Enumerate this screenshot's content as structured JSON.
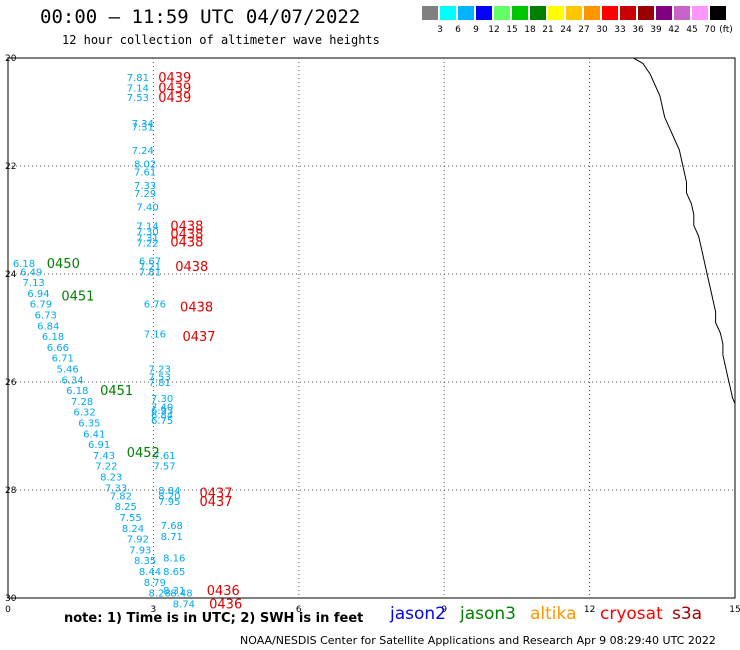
{
  "header": {
    "title": "00:00 – 11:59 UTC 04/07/2022",
    "subtitle": "12 hour collection of altimeter wave heights"
  },
  "colorbar": {
    "colors": [
      "#808080",
      "#00ffff",
      "#00b4ff",
      "#0000ff",
      "#64ff64",
      "#00c800",
      "#008000",
      "#ffff00",
      "#ffc800",
      "#ff9600",
      "#ff0000",
      "#c80000",
      "#960000",
      "#800080",
      "#c864c8",
      "#ff96ff",
      "#000000"
    ],
    "labels": [
      "3",
      "6",
      "9",
      "12",
      "15",
      "18",
      "21",
      "24",
      "27",
      "30",
      "33",
      "36",
      "39",
      "42",
      "45",
      "70"
    ],
    "unit": "(ft)"
  },
  "axes": {
    "y_ticks": [
      "20",
      "22",
      "24",
      "26",
      "28",
      "30"
    ],
    "x_ticks": [
      "0",
      "3",
      "6",
      "9",
      "12",
      "15"
    ]
  },
  "footnote": "note: 1) Time is in UTC; 2) SWH is in feet",
  "legend": [
    {
      "name": "jason2",
      "color": "#0000ff"
    },
    {
      "name": "jason3",
      "color": "#008000"
    },
    {
      "name": "altika",
      "color": "#ff9600"
    },
    {
      "name": "cryosat",
      "color": "#ff0000"
    },
    {
      "name": "s3a",
      "color": "#a00000"
    }
  ],
  "credit": "NOAA/NESDIS Center for Satellite Applications and Research    Apr  9 08:29:40 UTC 2022",
  "observations": {
    "cryosat_color": "#00aaee",
    "jason3_color": "#008000",
    "s3a_color": "#e00000",
    "track_a": [
      {
        "lat": 20.35,
        "lon": 2.45,
        "swh": "7.81"
      },
      {
        "lat": 20.55,
        "lon": 2.45,
        "swh": "7.14"
      },
      {
        "lat": 20.72,
        "lon": 2.45,
        "swh": "7.53"
      },
      {
        "lat": 21.2,
        "lon": 2.55,
        "swh": "7.34"
      },
      {
        "lat": 21.27,
        "lon": 2.55,
        "swh": "7.31"
      },
      {
        "lat": 21.7,
        "lon": 2.55,
        "swh": "7.24"
      },
      {
        "lat": 21.95,
        "lon": 2.6,
        "swh": "8.02"
      },
      {
        "lat": 22.1,
        "lon": 2.6,
        "swh": "7.61"
      },
      {
        "lat": 22.35,
        "lon": 2.6,
        "swh": "7.33"
      },
      {
        "lat": 22.5,
        "lon": 2.6,
        "swh": "7.29"
      },
      {
        "lat": 22.75,
        "lon": 2.65,
        "swh": "7.40"
      },
      {
        "lat": 23.1,
        "lon": 2.65,
        "swh": "7.14"
      },
      {
        "lat": 23.2,
        "lon": 2.65,
        "swh": "7.30"
      },
      {
        "lat": 23.32,
        "lon": 2.65,
        "swh": "7.31"
      },
      {
        "lat": 23.42,
        "lon": 2.65,
        "swh": "7.22"
      },
      {
        "lat": 23.75,
        "lon": 2.7,
        "swh": "6.67"
      },
      {
        "lat": 23.85,
        "lon": 2.7,
        "swh": "7.21"
      },
      {
        "lat": 23.95,
        "lon": 2.7,
        "swh": "7.81"
      },
      {
        "lat": 24.55,
        "lon": 2.8,
        "swh": "6.76"
      },
      {
        "lat": 25.1,
        "lon": 2.8,
        "swh": "7.16"
      },
      {
        "lat": 25.75,
        "lon": 2.9,
        "swh": "7.23"
      },
      {
        "lat": 25.9,
        "lon": 2.9,
        "swh": "7.53"
      },
      {
        "lat": 26.0,
        "lon": 2.9,
        "swh": "7.81"
      },
      {
        "lat": 26.3,
        "lon": 2.95,
        "swh": "7.30"
      },
      {
        "lat": 26.45,
        "lon": 2.95,
        "swh": "7.40"
      },
      {
        "lat": 26.52,
        "lon": 2.95,
        "swh": "6.93"
      },
      {
        "lat": 26.6,
        "lon": 2.95,
        "swh": "6.84"
      },
      {
        "lat": 26.7,
        "lon": 2.95,
        "swh": "6.75"
      },
      {
        "lat": 27.35,
        "lon": 3.0,
        "swh": "7.61"
      },
      {
        "lat": 27.55,
        "lon": 3.0,
        "swh": "7.57"
      },
      {
        "lat": 28.0,
        "lon": 3.1,
        "swh": "8.84"
      },
      {
        "lat": 28.1,
        "lon": 3.1,
        "swh": "8.20"
      },
      {
        "lat": 28.2,
        "lon": 3.1,
        "swh": "7.95"
      },
      {
        "lat": 28.65,
        "lon": 3.15,
        "swh": "7.68"
      },
      {
        "lat": 28.85,
        "lon": 3.15,
        "swh": "8.71"
      },
      {
        "lat": 29.25,
        "lon": 3.2,
        "swh": "8.16"
      },
      {
        "lat": 29.5,
        "lon": 3.2,
        "swh": "8.65"
      },
      {
        "lat": 29.85,
        "lon": 3.2,
        "swh": "8.31"
      },
      {
        "lat": 29.9,
        "lon": 3.35,
        "swh": "8.48"
      },
      {
        "lat": 30.1,
        "lon": 3.4,
        "swh": "8.74"
      }
    ],
    "track_b": [
      {
        "lat": 23.8,
        "lon": 0.1,
        "swh": "6.18"
      },
      {
        "lat": 23.95,
        "lon": 0.25,
        "swh": "6.49"
      },
      {
        "lat": 24.15,
        "lon": 0.3,
        "swh": "7.13"
      },
      {
        "lat": 24.35,
        "lon": 0.4,
        "swh": "6.94"
      },
      {
        "lat": 24.55,
        "lon": 0.45,
        "swh": "6.79"
      },
      {
        "lat": 24.75,
        "lon": 0.55,
        "swh": "6.73"
      },
      {
        "lat": 24.95,
        "lon": 0.6,
        "swh": "6.84"
      },
      {
        "lat": 25.15,
        "lon": 0.7,
        "swh": "6.18"
      },
      {
        "lat": 25.35,
        "lon": 0.8,
        "swh": "6.66"
      },
      {
        "lat": 25.55,
        "lon": 0.9,
        "swh": "6.71"
      },
      {
        "lat": 25.75,
        "lon": 1.0,
        "swh": "5.46"
      },
      {
        "lat": 25.95,
        "lon": 1.1,
        "swh": "6.34"
      },
      {
        "lat": 26.15,
        "lon": 1.2,
        "swh": "6.18"
      },
      {
        "lat": 26.35,
        "lon": 1.3,
        "swh": "7.28"
      },
      {
        "lat": 26.55,
        "lon": 1.35,
        "swh": "6.32"
      },
      {
        "lat": 26.75,
        "lon": 1.45,
        "swh": "6.35"
      },
      {
        "lat": 26.95,
        "lon": 1.55,
        "swh": "6.41"
      },
      {
        "lat": 27.15,
        "lon": 1.65,
        "swh": "6.91"
      },
      {
        "lat": 27.35,
        "lon": 1.75,
        "swh": "7.43"
      },
      {
        "lat": 27.55,
        "lon": 1.8,
        "swh": "7.22"
      },
      {
        "lat": 27.75,
        "lon": 1.9,
        "swh": "8.23"
      },
      {
        "lat": 27.95,
        "lon": 2.0,
        "swh": "7.33"
      },
      {
        "lat": 28.1,
        "lon": 2.1,
        "swh": "7.82"
      },
      {
        "lat": 28.3,
        "lon": 2.2,
        "swh": "8.25"
      },
      {
        "lat": 28.5,
        "lon": 2.3,
        "swh": "7.55"
      },
      {
        "lat": 28.7,
        "lon": 2.35,
        "swh": "8.24"
      },
      {
        "lat": 28.9,
        "lon": 2.45,
        "swh": "7.92"
      },
      {
        "lat": 29.1,
        "lon": 2.5,
        "swh": "7.93"
      },
      {
        "lat": 29.3,
        "lon": 2.6,
        "swh": "8.35"
      },
      {
        "lat": 29.5,
        "lon": 2.7,
        "swh": "8.44"
      },
      {
        "lat": 29.7,
        "lon": 2.8,
        "swh": "8.79"
      },
      {
        "lat": 29.9,
        "lon": 2.9,
        "swh": "8.28"
      }
    ],
    "times_s3a": [
      {
        "lat": 20.35,
        "lon": 3.1,
        "t": "0439"
      },
      {
        "lat": 20.55,
        "lon": 3.1,
        "t": "0439"
      },
      {
        "lat": 20.72,
        "lon": 3.1,
        "t": "0439"
      },
      {
        "lat": 23.1,
        "lon": 3.35,
        "t": "0438"
      },
      {
        "lat": 23.25,
        "lon": 3.35,
        "t": "0438"
      },
      {
        "lat": 23.4,
        "lon": 3.35,
        "t": "0438"
      },
      {
        "lat": 23.85,
        "lon": 3.45,
        "t": "0438"
      },
      {
        "lat": 24.6,
        "lon": 3.55,
        "t": "0438"
      },
      {
        "lat": 25.15,
        "lon": 3.6,
        "t": "0437"
      },
      {
        "lat": 28.05,
        "lon": 3.95,
        "t": "0437"
      },
      {
        "lat": 28.2,
        "lon": 3.95,
        "t": "0437"
      },
      {
        "lat": 29.85,
        "lon": 4.1,
        "t": "0436"
      },
      {
        "lat": 30.1,
        "lon": 4.15,
        "t": "0436"
      }
    ],
    "times_jason3": [
      {
        "lat": 23.8,
        "lon": 0.8,
        "t": "0450"
      },
      {
        "lat": 24.4,
        "lon": 1.1,
        "t": "0451"
      },
      {
        "lat": 26.15,
        "lon": 1.9,
        "t": "0451"
      },
      {
        "lat": 27.3,
        "lon": 2.45,
        "t": "0452"
      }
    ]
  },
  "coastline": [
    [
      20.0,
      12.9
    ],
    [
      20.1,
      13.1
    ],
    [
      20.3,
      13.25
    ],
    [
      20.5,
      13.35
    ],
    [
      20.7,
      13.45
    ],
    [
      20.9,
      13.5
    ],
    [
      21.1,
      13.55
    ],
    [
      21.3,
      13.65
    ],
    [
      21.5,
      13.75
    ],
    [
      21.7,
      13.85
    ],
    [
      21.9,
      13.9
    ],
    [
      22.1,
      13.95
    ],
    [
      22.3,
      14.0
    ],
    [
      22.5,
      14.0
    ],
    [
      22.7,
      14.1
    ],
    [
      22.9,
      14.15
    ],
    [
      23.1,
      14.15
    ],
    [
      23.3,
      14.25
    ],
    [
      23.5,
      14.3
    ],
    [
      23.7,
      14.35
    ],
    [
      23.9,
      14.4
    ],
    [
      24.1,
      14.45
    ],
    [
      24.3,
      14.5
    ],
    [
      24.5,
      14.55
    ],
    [
      24.7,
      14.6
    ],
    [
      24.9,
      14.6
    ],
    [
      25.1,
      14.7
    ],
    [
      25.3,
      14.75
    ],
    [
      25.5,
      14.75
    ],
    [
      25.7,
      14.8
    ],
    [
      25.9,
      14.85
    ],
    [
      26.1,
      14.9
    ],
    [
      26.3,
      14.95
    ],
    [
      26.4,
      15.0
    ]
  ]
}
